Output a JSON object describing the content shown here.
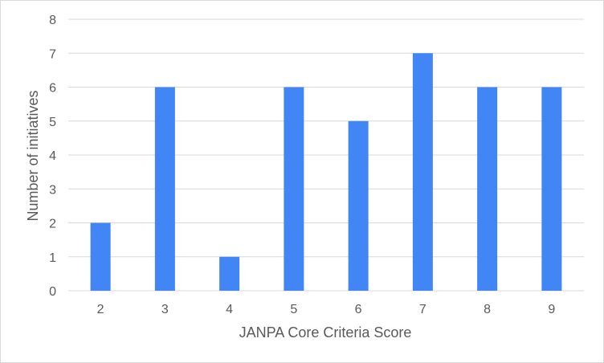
{
  "chart_data": {
    "type": "bar",
    "categories": [
      "2",
      "3",
      "4",
      "5",
      "6",
      "7",
      "8",
      "9"
    ],
    "values": [
      2,
      6,
      1,
      6,
      5,
      7,
      6,
      6
    ],
    "title": "",
    "xlabel": "JANPA  Core Criteria Score",
    "ylabel": "Number  of initiatives",
    "ylim": [
      0,
      8
    ],
    "yticks": [
      "0",
      "1",
      "2",
      "3",
      "4",
      "5",
      "6",
      "7",
      "8"
    ],
    "grid": true,
    "legend": "none",
    "colors": {
      "bar": "#4285f4",
      "grid": "#d9d9d9",
      "text": "#595959",
      "border": "#d9d9d9"
    }
  }
}
